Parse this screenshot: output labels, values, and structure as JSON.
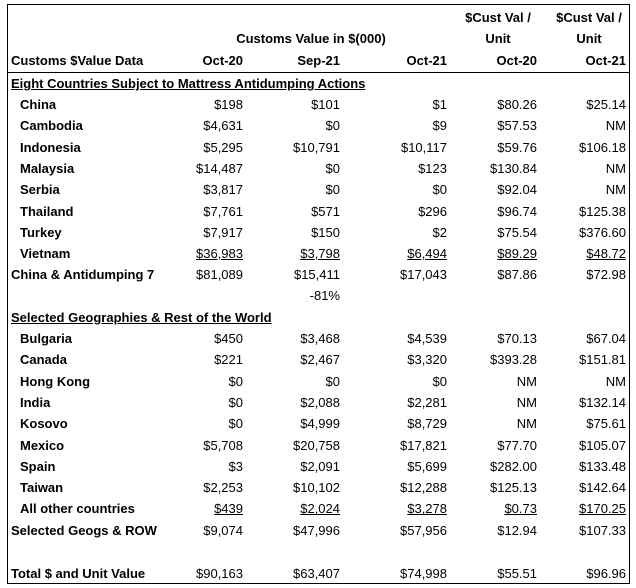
{
  "header": {
    "row_label": "Customs $Value Data",
    "group_label": "Customs Value in $(000)",
    "col1": "Oct-20",
    "col2": "Sep-21",
    "col3": "Oct-21",
    "unit_col_top": "$Cust Val /",
    "unit_col_mid": "Unit",
    "col4": "Oct-20",
    "col5": "Oct-21"
  },
  "section1": {
    "title": "Eight Countries Subject to Mattress Antidumping Actions",
    "rows": [
      {
        "name": "China",
        "v1": "$198",
        "v2": "$101",
        "v3": "$1",
        "v4": "$80.26",
        "v5": "$25.14"
      },
      {
        "name": "Cambodia",
        "v1": "$4,631",
        "v2": "$0",
        "v3": "$9",
        "v4": "$57.53",
        "v5": "NM"
      },
      {
        "name": "Indonesia",
        "v1": "$5,295",
        "v2": "$10,791",
        "v3": "$10,117",
        "v4": "$59.76",
        "v5": "$106.18"
      },
      {
        "name": "Malaysia",
        "v1": "$14,487",
        "v2": "$0",
        "v3": "$123",
        "v4": "$130.84",
        "v5": "NM"
      },
      {
        "name": "Serbia",
        "v1": "$3,817",
        "v2": "$0",
        "v3": "$0",
        "v4": "$92.04",
        "v5": "NM"
      },
      {
        "name": "Thailand",
        "v1": "$7,761",
        "v2": "$571",
        "v3": "$296",
        "v4": "$96.74",
        "v5": "$125.38"
      },
      {
        "name": "Turkey",
        "v1": "$7,917",
        "v2": "$150",
        "v3": "$2",
        "v4": "$75.54",
        "v5": "$376.60"
      },
      {
        "name": "Vietnam",
        "v1": "$36,983",
        "v2": "$3,798",
        "v3": "$6,494",
        "v4": "$89.29",
        "v5": "$48.72"
      }
    ],
    "total": {
      "name": "China & Antidumping 7",
      "v1": "$81,089",
      "v2": "$15,411",
      "v3": "$17,043",
      "v4": "$87.86",
      "v5": "$72.98"
    },
    "pct_note": "-81%"
  },
  "section2": {
    "title": "Selected Geographies & Rest of the World",
    "rows": [
      {
        "name": "Bulgaria",
        "v1": "$450",
        "v2": "$3,468",
        "v3": "$4,539",
        "v4": "$70.13",
        "v5": "$67.04"
      },
      {
        "name": "Canada",
        "v1": "$221",
        "v2": "$2,467",
        "v3": "$3,320",
        "v4": "$393.28",
        "v5": "$151.81"
      },
      {
        "name": "Hong Kong",
        "v1": "$0",
        "v2": "$0",
        "v3": "$0",
        "v4": "NM",
        "v5": "NM"
      },
      {
        "name": "India",
        "v1": "$0",
        "v2": "$2,088",
        "v3": "$2,281",
        "v4": "NM",
        "v5": "$132.14"
      },
      {
        "name": "Kosovo",
        "v1": "$0",
        "v2": "$4,999",
        "v3": "$8,729",
        "v4": "NM",
        "v5": "$75.61"
      },
      {
        "name": "Mexico",
        "v1": "$5,708",
        "v2": "$20,758",
        "v3": "$17,821",
        "v4": "$77.70",
        "v5": "$105.07"
      },
      {
        "name": "Spain",
        "v1": "$3",
        "v2": "$2,091",
        "v3": "$5,699",
        "v4": "$282.00",
        "v5": "$133.48"
      },
      {
        "name": "Taiwan",
        "v1": "$2,253",
        "v2": "$10,102",
        "v3": "$12,288",
        "v4": "$125.13",
        "v5": "$142.64"
      },
      {
        "name": "All other countries",
        "v1": "$439",
        "v2": "$2,024",
        "v3": "$3,278",
        "v4": "$0.73",
        "v5": "$170.25"
      }
    ],
    "total": {
      "name": "Selected Geogs & ROW",
      "v1": "$9,074",
      "v2": "$47,996",
      "v3": "$57,956",
      "v4": "$12.94",
      "v5": "$107.33"
    }
  },
  "grand_total": {
    "name": "Total $ and Unit Value",
    "v1": "$90,163",
    "v2": "$63,407",
    "v3": "$74,998",
    "v4": "$55.51",
    "v5": "$96.96"
  }
}
